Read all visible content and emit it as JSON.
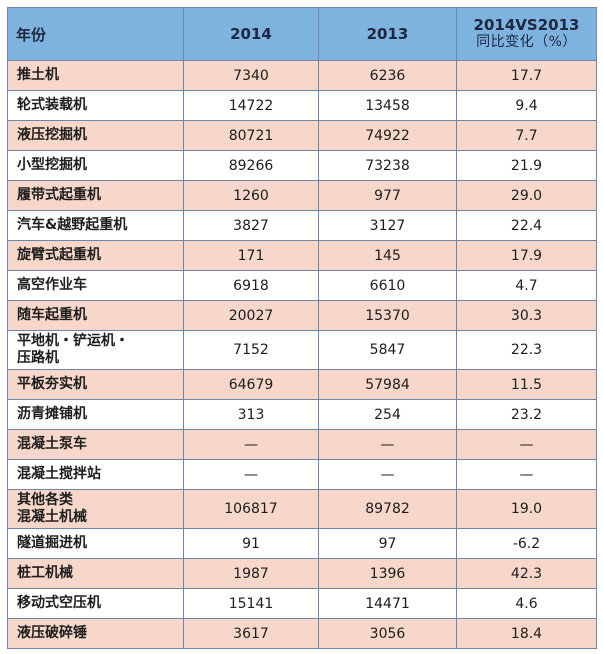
{
  "header": {
    "col_year": "年份",
    "col_2014": "2014",
    "col_2013": "2013",
    "col_cmp_line1": "2014VS2013",
    "col_cmp_line2": "同比变化（%）"
  },
  "rows": [
    {
      "name": "推土机",
      "v2014": "7340",
      "v2013": "6236",
      "change": "17.7"
    },
    {
      "name": "轮式装载机",
      "v2014": "14722",
      "v2013": "13458",
      "change": "9.4"
    },
    {
      "name": "液压挖掘机",
      "v2014": "80721",
      "v2013": "74922",
      "change": "7.7"
    },
    {
      "name": "小型挖掘机",
      "v2014": "89266",
      "v2013": "73238",
      "change": "21.9"
    },
    {
      "name": "履带式起重机",
      "v2014": "1260",
      "v2013": "977",
      "change": "29.0"
    },
    {
      "name": "汽车&越野起重机",
      "v2014": "3827",
      "v2013": "3127",
      "change": "22.4"
    },
    {
      "name": "旋臂式起重机",
      "v2014": "171",
      "v2013": "145",
      "change": "17.9"
    },
    {
      "name": "高空作业车",
      "v2014": "6918",
      "v2013": "6610",
      "change": "4.7"
    },
    {
      "name": "随车起重机",
      "v2014": "20027",
      "v2013": "15370",
      "change": "30.3"
    },
    {
      "name_line1": "平地机・铲运机・",
      "name_line2": "压路机",
      "v2014": "7152",
      "v2013": "5847",
      "change": "22.3"
    },
    {
      "name": "平板夯实机",
      "v2014": "64679",
      "v2013": "57984",
      "change": "11.5"
    },
    {
      "name": "沥青摊铺机",
      "v2014": "313",
      "v2013": "254",
      "change": "23.2"
    },
    {
      "name": "混凝土泵车",
      "v2014": "—",
      "v2013": "—",
      "change": "—"
    },
    {
      "name": "混凝土搅拌站",
      "v2014": "—",
      "v2013": "—",
      "change": "—"
    },
    {
      "name_line1": "其他各类",
      "name_line2": "混凝土机械",
      "v2014": "106817",
      "v2013": "89782",
      "change": "19.0"
    },
    {
      "name": "隧道掘进机",
      "v2014": "91",
      "v2013": "97",
      "change": "-6.2"
    },
    {
      "name": "桩工机械",
      "v2014": "1987",
      "v2013": "1396",
      "change": "42.3"
    },
    {
      "name": "移动式空压机",
      "v2014": "15141",
      "v2013": "14471",
      "change": "4.6"
    },
    {
      "name": "液压破碎锤",
      "v2014": "3617",
      "v2013": "3056",
      "change": "18.4"
    }
  ]
}
